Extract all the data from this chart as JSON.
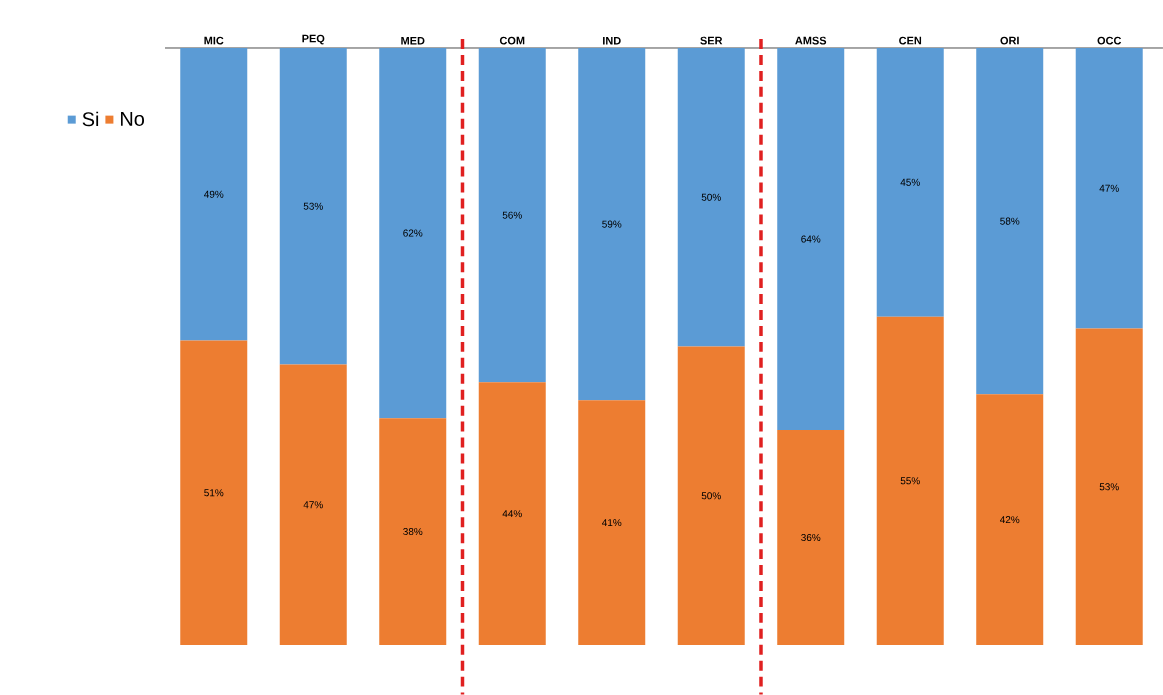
{
  "chart_data": {
    "type": "bar",
    "stacked": true,
    "categories": [
      "MIC",
      "PEQ",
      "MED",
      "COM",
      "IND",
      "SER",
      "AMSS",
      "CEN",
      "ORI",
      "OCC"
    ],
    "series": [
      {
        "name": "No",
        "color": "#ed7d31",
        "values": [
          51,
          47,
          38,
          44,
          41,
          50,
          36,
          55,
          42,
          53
        ],
        "value_labels": [
          "51%",
          "47%",
          "38%",
          "44%",
          "41%",
          "50%",
          "36%",
          "55%",
          "42%",
          "53%"
        ]
      },
      {
        "name": "Si",
        "color": "#5b9bd5",
        "values": [
          49,
          53,
          62,
          56,
          59,
          50,
          64,
          45,
          58,
          47
        ],
        "value_labels": [
          "49%",
          "53%",
          "62%",
          "56%",
          "59%",
          "50%",
          "64%",
          "45%",
          "58%",
          "47%"
        ]
      }
    ],
    "ylim": [
      0,
      100
    ],
    "tick_labels": "x",
    "legend": "left"
  }
}
